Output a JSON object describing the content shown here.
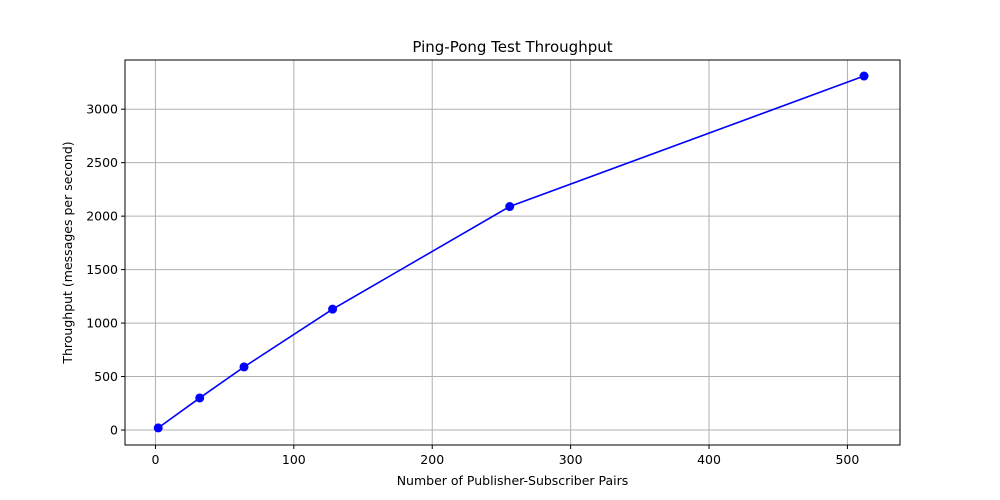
{
  "chart_data": {
    "type": "line",
    "title": "Ping-Pong Test Throughput",
    "xlabel": "Number of Publisher-Subscriber Pairs",
    "ylabel": "Throughput (messages per second)",
    "xlim": [
      -22,
      538
    ],
    "ylim": [
      -140,
      3460
    ],
    "xticks": [
      0,
      100,
      200,
      300,
      400,
      500
    ],
    "yticks": [
      0,
      500,
      1000,
      1500,
      2000,
      2500,
      3000
    ],
    "grid": true,
    "series": [
      {
        "x": [
          2,
          32,
          64,
          128,
          256,
          512
        ],
        "y": [
          20,
          300,
          590,
          1130,
          2090,
          3310
        ],
        "color": "#0000ff",
        "marker": "circle"
      }
    ]
  }
}
